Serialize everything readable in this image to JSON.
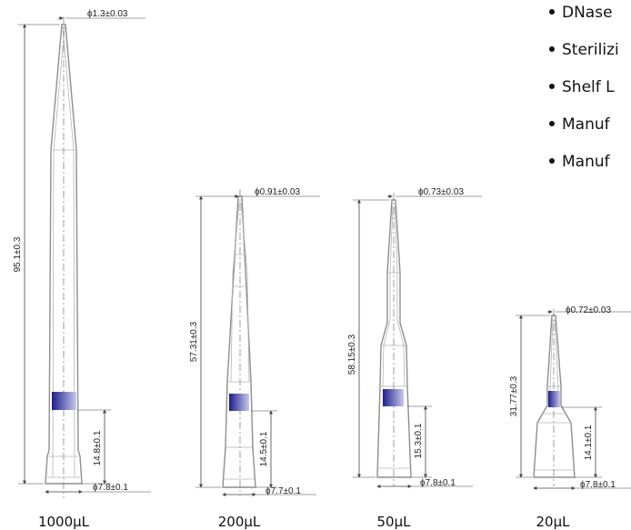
{
  "bullets": [
    "DNase",
    "Sterilizi",
    "Shelf L",
    "Manuf",
    "Manuf"
  ],
  "colors": {
    "outline": "#8e8e8e",
    "dimension": "#444444",
    "band_dark": "#1e1e8c",
    "band_light": "#c8c8ee"
  },
  "tips": [
    {
      "capacity": "1000µL",
      "tip_dia": "ϕ1.3±0.03",
      "length": "95.1±0.3",
      "band_height": "14.8±0.1",
      "base_dia": "ϕ7.8±0.1"
    },
    {
      "capacity": "200µL",
      "tip_dia": "ϕ0.91±0.03",
      "length": "57.31±0.3",
      "band_height": "14.5±0.1",
      "base_dia": "ϕ7.7±0.1"
    },
    {
      "capacity": "50µL",
      "tip_dia": "ϕ0.73±0.03",
      "length": "58.15±0.3",
      "band_height": "15.3±0.1",
      "base_dia": "ϕ7.8±0.1"
    },
    {
      "capacity": "20µL",
      "tip_dia": "ϕ0.72±0.03",
      "length": "31.77±0.3",
      "band_height": "14.1±0.1",
      "base_dia": "ϕ7.8±0.1"
    }
  ]
}
